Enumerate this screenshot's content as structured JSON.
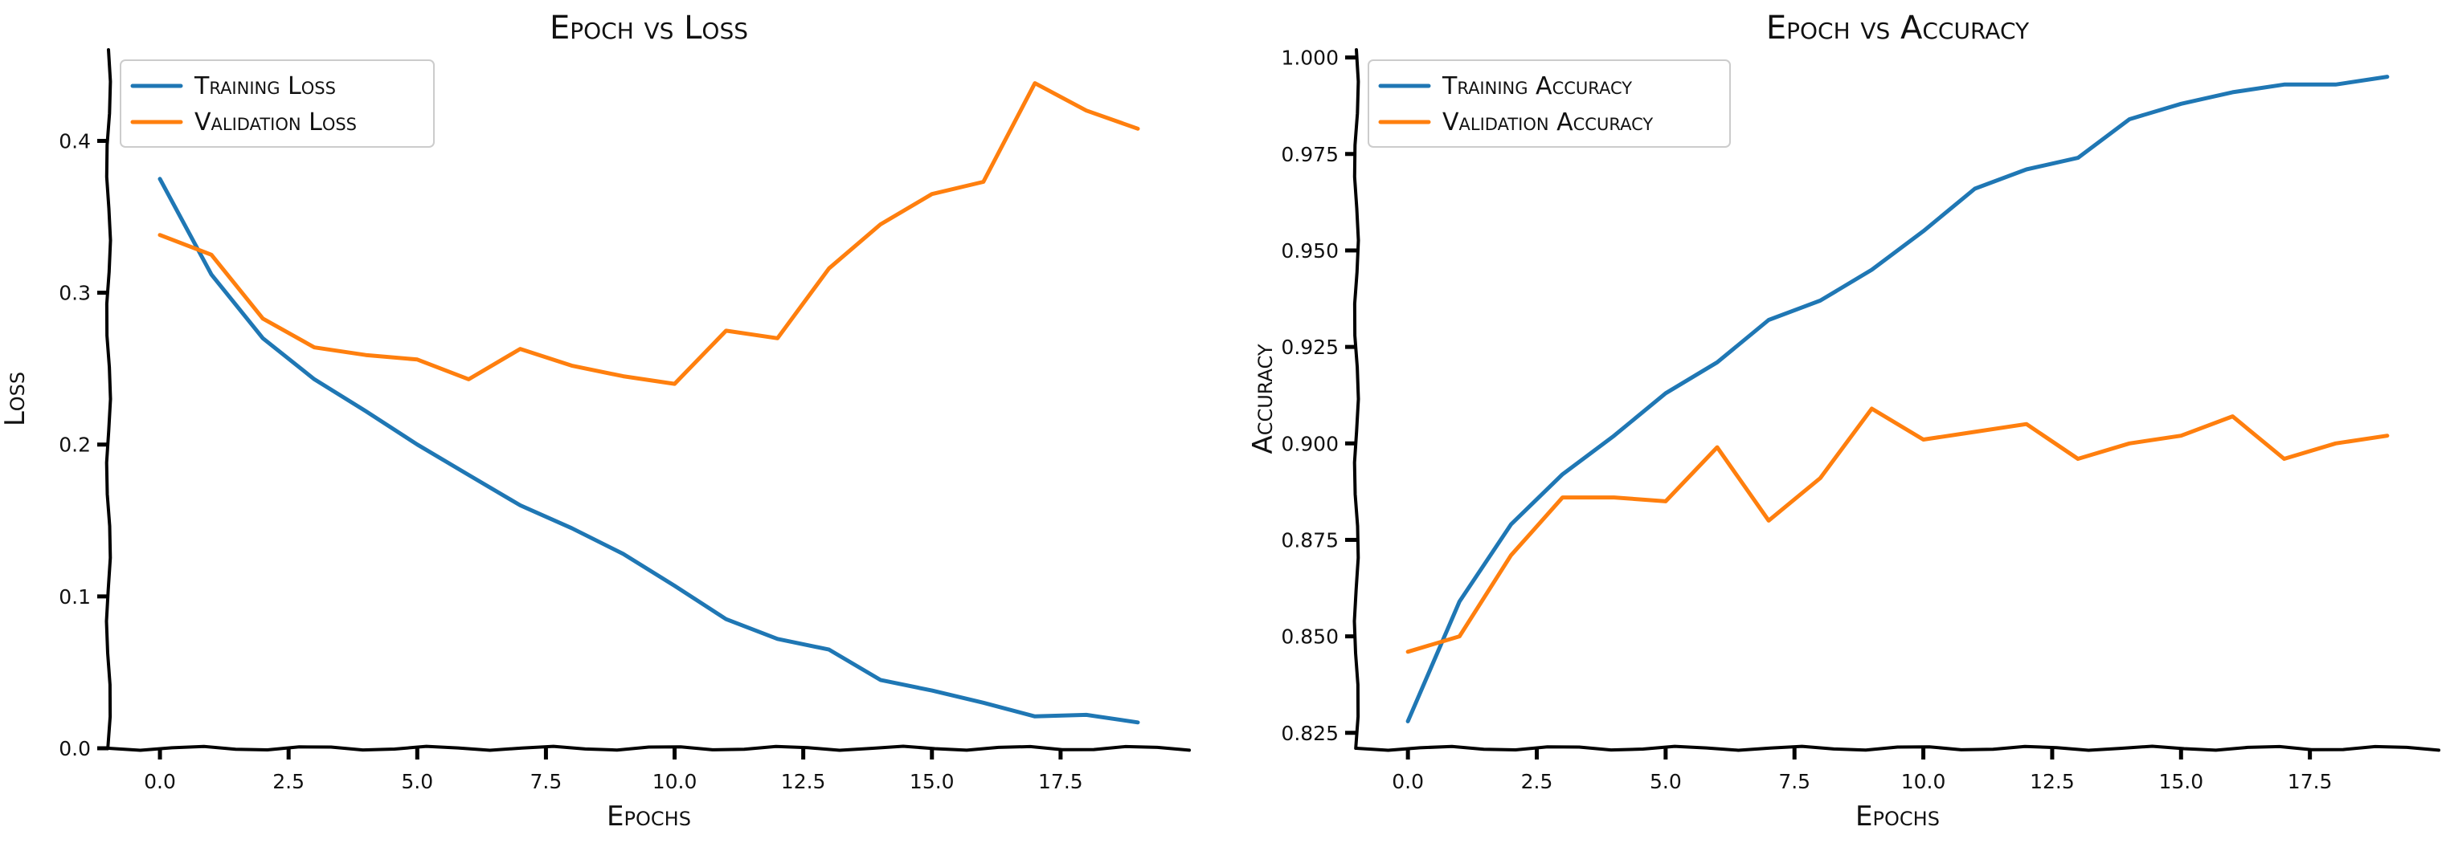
{
  "colors": {
    "blue": "#1f77b4",
    "orange": "#ff7f0e"
  },
  "chart_data": [
    {
      "type": "line",
      "title": "Epoch vs Loss",
      "xlabel": "Epochs",
      "ylabel": "Loss",
      "xlim": [
        -1.0,
        20.0
      ],
      "ylim": [
        0.0,
        0.46
      ],
      "xticks": [
        0,
        2.5,
        5,
        7.5,
        10,
        12.5,
        15,
        17.5
      ],
      "xtick_labels": [
        "0.0",
        "2.5",
        "5.0",
        "7.5",
        "10.0",
        "12.5",
        "15.0",
        "17.5"
      ],
      "yticks": [
        0.0,
        0.1,
        0.2,
        0.3,
        0.4
      ],
      "ytick_labels": [
        "0.0",
        "0.1",
        "0.2",
        "0.3",
        "0.4"
      ],
      "legend": "top-left",
      "grid": false,
      "x": [
        0,
        1,
        2,
        3,
        4,
        5,
        6,
        7,
        8,
        9,
        10,
        11,
        12,
        13,
        14,
        15,
        16,
        17,
        18,
        19
      ],
      "series": [
        {
          "name": "Training Loss",
          "color": "#1f77b4",
          "values": [
            0.375,
            0.312,
            0.27,
            0.243,
            0.222,
            0.2,
            0.18,
            0.16,
            0.145,
            0.128,
            0.107,
            0.085,
            0.072,
            0.065,
            0.045,
            0.038,
            0.03,
            0.021,
            0.022,
            0.017
          ]
        },
        {
          "name": "Validation Loss",
          "color": "#ff7f0e",
          "values": [
            0.338,
            0.325,
            0.283,
            0.264,
            0.259,
            0.256,
            0.243,
            0.263,
            0.252,
            0.245,
            0.24,
            0.275,
            0.27,
            0.316,
            0.345,
            0.365,
            0.373,
            0.438,
            0.42,
            0.408
          ]
        }
      ]
    },
    {
      "type": "line",
      "title": "Epoch vs Accuracy",
      "xlabel": "Epochs",
      "ylabel": "Accuracy",
      "xlim": [
        -1.0,
        20.0
      ],
      "ylim": [
        0.821,
        1.002
      ],
      "xticks": [
        0,
        2.5,
        5,
        7.5,
        10,
        12.5,
        15,
        17.5
      ],
      "xtick_labels": [
        "0.0",
        "2.5",
        "5.0",
        "7.5",
        "10.0",
        "12.5",
        "15.0",
        "17.5"
      ],
      "yticks": [
        0.825,
        0.85,
        0.875,
        0.9,
        0.925,
        0.95,
        0.975,
        1.0
      ],
      "ytick_labels": [
        "0.825",
        "0.850",
        "0.875",
        "0.900",
        "0.925",
        "0.950",
        "0.975",
        "1.000"
      ],
      "legend": "top-left",
      "grid": false,
      "x": [
        0,
        1,
        2,
        3,
        4,
        5,
        6,
        7,
        8,
        9,
        10,
        11,
        12,
        13,
        14,
        15,
        16,
        17,
        18,
        19
      ],
      "series": [
        {
          "name": "Training Accuracy",
          "color": "#1f77b4",
          "values": [
            0.828,
            0.859,
            0.879,
            0.892,
            0.902,
            0.913,
            0.921,
            0.932,
            0.937,
            0.945,
            0.955,
            0.966,
            0.971,
            0.974,
            0.984,
            0.988,
            0.991,
            0.993,
            0.993,
            0.995
          ]
        },
        {
          "name": "Validation Accuracy",
          "color": "#ff7f0e",
          "values": [
            0.846,
            0.85,
            0.871,
            0.886,
            0.886,
            0.885,
            0.899,
            0.88,
            0.891,
            0.909,
            0.901,
            0.903,
            0.905,
            0.896,
            0.9,
            0.902,
            0.907,
            0.896,
            0.9,
            0.902
          ]
        }
      ]
    }
  ]
}
